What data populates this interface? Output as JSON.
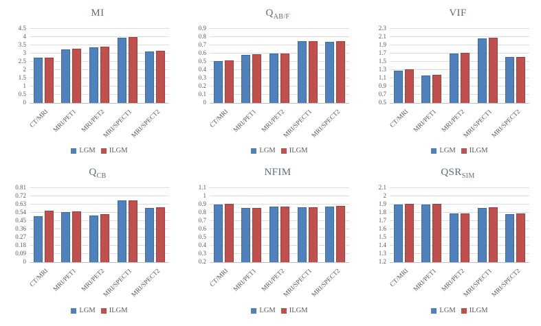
{
  "page": {
    "background": "#ffffff"
  },
  "colors": {
    "lgm": "#4F81BD",
    "lgm_border": "#3f699c",
    "ilgm": "#C0504D",
    "ilgm_border": "#a03f3d",
    "gridline": "#dcdcdc",
    "axis": "#bfbfbf",
    "text": "#595959",
    "title": "#5d6b7c"
  },
  "legend": {
    "items": [
      {
        "label": "LGM",
        "color": "#4F81BD"
      },
      {
        "label": "ILGM",
        "color": "#C0504D"
      }
    ],
    "position": "bottom"
  },
  "chart_data": [
    {
      "id": "mi",
      "type": "bar",
      "title": "MI",
      "title_main": "MI",
      "title_sub": "",
      "categories": [
        "CT/MRI",
        "MRI/PET1",
        "MRI/PET2",
        "MRI/SPECT1",
        "MRI/SPECT2"
      ],
      "series": [
        {
          "name": "LGM",
          "color": "#4F81BD",
          "border": "#3f699c",
          "values": [
            2.73,
            3.25,
            3.37,
            3.95,
            3.11
          ]
        },
        {
          "name": "ILGM",
          "color": "#C0504D",
          "border": "#a03f3d",
          "values": [
            2.74,
            3.28,
            3.43,
            3.98,
            3.17
          ]
        }
      ],
      "ylim": [
        0,
        4.5
      ],
      "ystep": 0.5,
      "grid": true,
      "legend_position": "bottom"
    },
    {
      "id": "qabf",
      "type": "bar",
      "title": "QAB/F",
      "title_main": "Q",
      "title_sub": "AB/F",
      "categories": [
        "CT/MRI",
        "MRI/PET1",
        "MRI/PET2",
        "MRI/SPECT1",
        "MRI/SPECT2"
      ],
      "series": [
        {
          "name": "LGM",
          "color": "#4F81BD",
          "border": "#3f699c",
          "values": [
            0.505,
            0.585,
            0.598,
            0.75,
            0.743
          ]
        },
        {
          "name": "ILGM",
          "color": "#C0504D",
          "border": "#a03f3d",
          "values": [
            0.513,
            0.59,
            0.604,
            0.751,
            0.75
          ]
        }
      ],
      "ylim": [
        0,
        0.9
      ],
      "ystep": 0.1,
      "grid": true,
      "legend_position": "bottom"
    },
    {
      "id": "vif",
      "type": "bar",
      "title": "VIF",
      "title_main": "VIF",
      "title_sub": "",
      "categories": [
        "CT/MRI",
        "MRI/PET1",
        "MRI/PET2",
        "MRI/SPECT1",
        "MRI/SPECT2"
      ],
      "series": [
        {
          "name": "LGM",
          "color": "#4F81BD",
          "border": "#3f699c",
          "values": [
            1.28,
            1.17,
            1.7,
            2.06,
            1.61
          ]
        },
        {
          "name": "ILGM",
          "color": "#C0504D",
          "border": "#a03f3d",
          "values": [
            1.31,
            1.19,
            1.72,
            2.08,
            1.62
          ]
        }
      ],
      "ylim": [
        0.5,
        2.3
      ],
      "ystep": 0.2,
      "grid": true,
      "legend_position": "bottom"
    },
    {
      "id": "qcb",
      "type": "bar",
      "title": "QCB",
      "title_main": "Q",
      "title_sub": "CB",
      "categories": [
        "CT/MRI",
        "MRI/PET1",
        "MRI/PET2",
        "MRI/SPECT1",
        "MRI/SPECT2"
      ],
      "series": [
        {
          "name": "LGM",
          "color": "#4F81BD",
          "border": "#3f699c",
          "values": [
            0.505,
            0.55,
            0.51,
            0.672,
            0.59
          ]
        },
        {
          "name": "ILGM",
          "color": "#C0504D",
          "border": "#a03f3d",
          "values": [
            0.563,
            0.555,
            0.522,
            0.678,
            0.602
          ]
        }
      ],
      "ylim": [
        0,
        0.81
      ],
      "ystep": 0.09,
      "grid": true,
      "legend_position": "bottom"
    },
    {
      "id": "nfim",
      "type": "bar",
      "title": "NFIM",
      "title_main": "NFIM",
      "title_sub": "",
      "categories": [
        "CT/MRI",
        "MRI/PET1",
        "MRI/PET2",
        "MRI/SPECT1",
        "MRI/SPECT2"
      ],
      "series": [
        {
          "name": "LGM",
          "color": "#4F81BD",
          "border": "#3f699c",
          "values": [
            0.9,
            0.855,
            0.875,
            0.865,
            0.875
          ]
        },
        {
          "name": "ILGM",
          "color": "#C0504D",
          "border": "#a03f3d",
          "values": [
            0.908,
            0.858,
            0.877,
            0.87,
            0.881
          ]
        }
      ],
      "ylim": [
        0.2,
        1.1
      ],
      "ystep": 0.1,
      "grid": true,
      "legend_position": "bottom"
    },
    {
      "id": "qsrsim",
      "type": "bar",
      "title": "QSRSIM",
      "title_main": "QSR",
      "title_sub": "SIM",
      "categories": [
        "CT/MRI",
        "MRI/PET1",
        "MRI/PET2",
        "MRI/SPECT1",
        "MRI/SPECT2"
      ],
      "series": [
        {
          "name": "LGM",
          "color": "#4F81BD",
          "border": "#3f699c",
          "values": [
            1.9,
            1.903,
            1.79,
            1.858,
            1.784
          ]
        },
        {
          "name": "ILGM",
          "color": "#C0504D",
          "border": "#a03f3d",
          "values": [
            1.908,
            1.909,
            1.795,
            1.863,
            1.79
          ]
        }
      ],
      "ylim": [
        1.2,
        2.1
      ],
      "ystep": 0.1,
      "grid": true,
      "legend_position": "bottom"
    }
  ]
}
